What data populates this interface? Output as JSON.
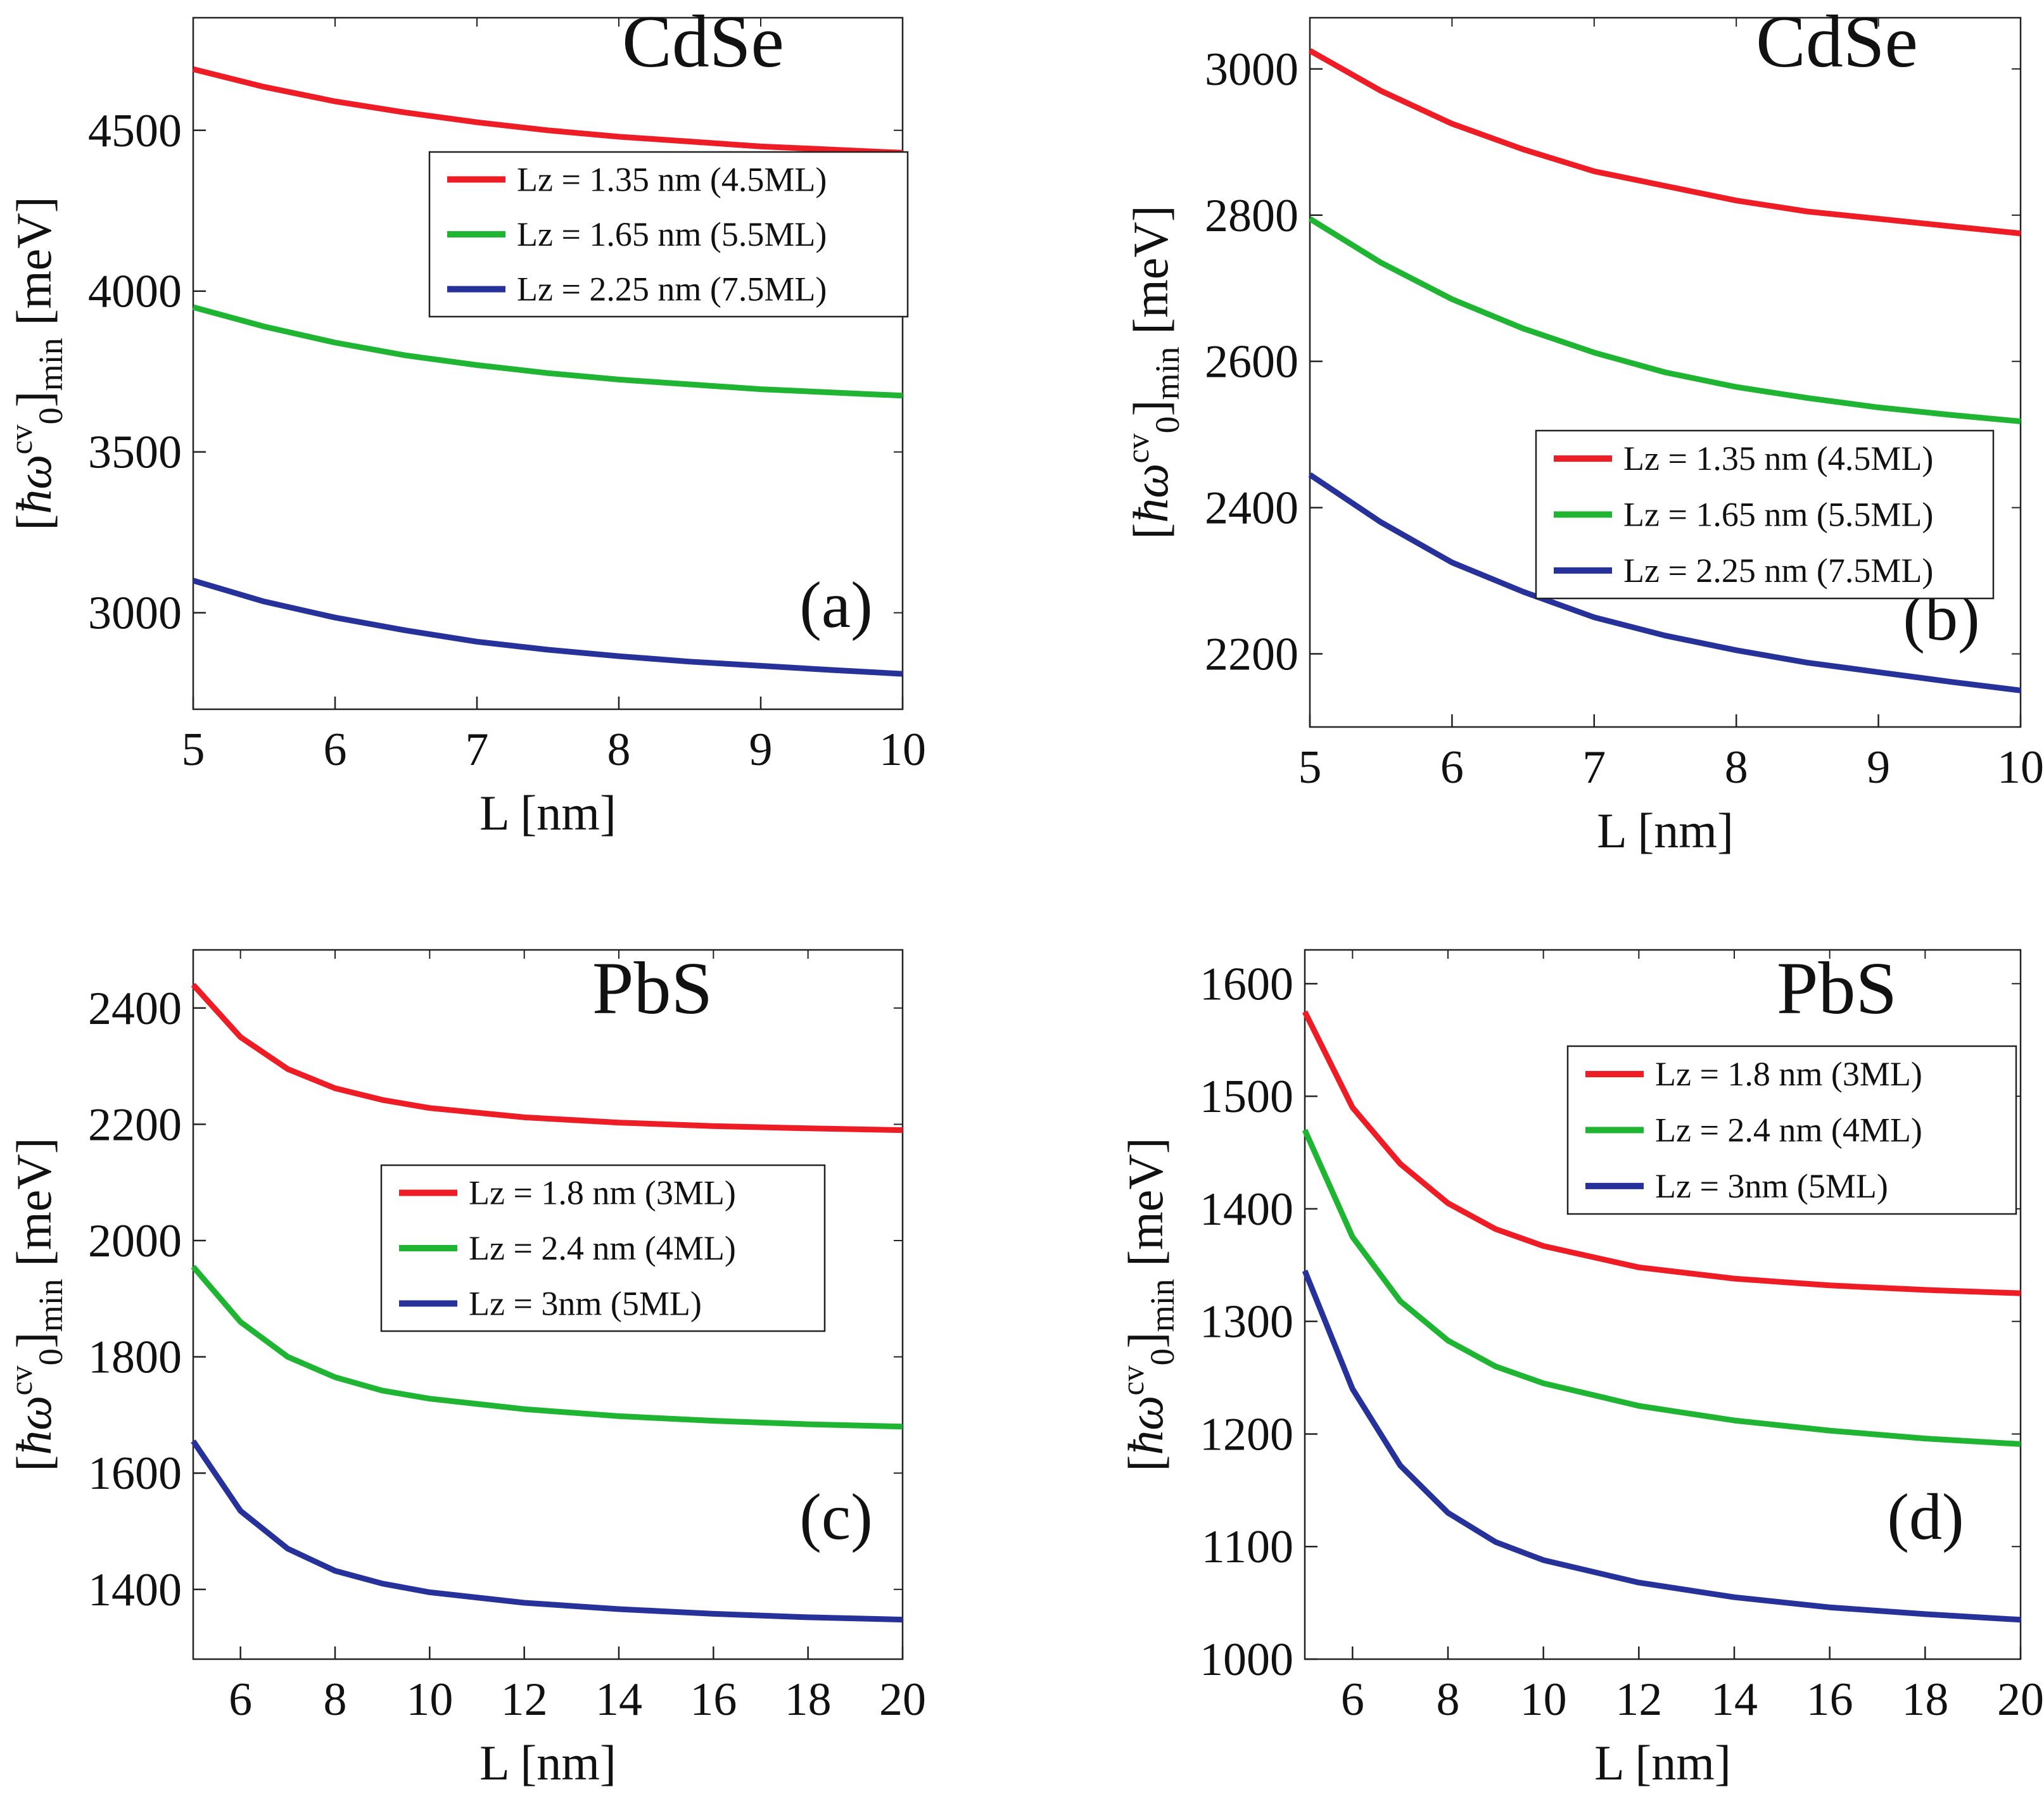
{
  "colors": {
    "red": "#ee1c25",
    "green": "#1fb533",
    "blue": "#26329a"
  },
  "chart_data": [
    {
      "type": "line",
      "panel": "(a)",
      "title": "CdSe",
      "xlabel": "L [nm]",
      "ylabel": {
        "prefix": "[",
        "symbol": "ħω",
        "sup": "cv",
        "sub0": "0",
        "suffix": "]",
        "sub": "min",
        "unit": " [meV]"
      },
      "xlim": [
        5,
        10
      ],
      "ylim": [
        2700,
        4850
      ],
      "xticks": [
        5,
        6,
        7,
        8,
        9,
        10
      ],
      "yticks": [
        3000,
        3500,
        4000,
        4500
      ],
      "legend_position": "top-right",
      "series": [
        {
          "name": "Lz = 1.35 nm (4.5ML)",
          "color": "red",
          "x": [
            5,
            5.5,
            6,
            6.5,
            7,
            7.5,
            8,
            8.5,
            9,
            9.5,
            10
          ],
          "y": [
            4690,
            4635,
            4590,
            4555,
            4525,
            4500,
            4480,
            4465,
            4450,
            4440,
            4430
          ]
        },
        {
          "name": "Lz = 1.65 nm (5.5ML)",
          "color": "green",
          "x": [
            5,
            5.5,
            6,
            6.5,
            7,
            7.5,
            8,
            8.5,
            9,
            9.5,
            10
          ],
          "y": [
            3950,
            3890,
            3840,
            3800,
            3770,
            3745,
            3725,
            3710,
            3695,
            3685,
            3675
          ]
        },
        {
          "name": "Lz = 2.25 nm (7.5ML)",
          "color": "blue",
          "x": [
            5,
            5.5,
            6,
            6.5,
            7,
            7.5,
            8,
            8.5,
            9,
            9.5,
            10
          ],
          "y": [
            3100,
            3035,
            2985,
            2945,
            2910,
            2885,
            2865,
            2848,
            2835,
            2822,
            2810
          ]
        }
      ]
    },
    {
      "type": "line",
      "panel": "(b)",
      "title": "CdSe",
      "xlabel": "L [nm]",
      "ylabel": {
        "prefix": "[",
        "symbol": "ħω",
        "sup": "cv",
        "sub0": "0",
        "suffix": "]",
        "sub": "min",
        "unit": " [meV]"
      },
      "xlim": [
        5,
        10
      ],
      "ylim": [
        2100,
        3070
      ],
      "xticks": [
        5,
        6,
        7,
        8,
        9,
        10
      ],
      "yticks": [
        2200,
        2400,
        2600,
        2800,
        3000
      ],
      "legend_position": "center-right",
      "series": [
        {
          "name": "Lz = 1.35 nm (4.5ML)",
          "color": "red",
          "x": [
            5,
            5.5,
            6,
            6.5,
            7,
            7.5,
            8,
            8.5,
            9,
            9.5,
            10
          ],
          "y": [
            3025,
            2970,
            2925,
            2890,
            2860,
            2840,
            2820,
            2805,
            2795,
            2785,
            2775
          ]
        },
        {
          "name": "Lz = 1.65 nm (5.5ML)",
          "color": "green",
          "x": [
            5,
            5.5,
            6,
            6.5,
            7,
            7.5,
            8,
            8.5,
            9,
            9.5,
            10
          ],
          "y": [
            2795,
            2735,
            2685,
            2645,
            2612,
            2585,
            2565,
            2550,
            2537,
            2527,
            2518
          ]
        },
        {
          "name": "Lz = 2.25 nm (7.5ML)",
          "color": "blue",
          "x": [
            5,
            5.5,
            6,
            6.5,
            7,
            7.5,
            8,
            8.5,
            9,
            9.5,
            10
          ],
          "y": [
            2445,
            2380,
            2325,
            2285,
            2250,
            2225,
            2205,
            2188,
            2175,
            2162,
            2150
          ]
        }
      ]
    },
    {
      "type": "line",
      "panel": "(c)",
      "title": "PbS",
      "xlabel": "L [nm]",
      "ylabel": {
        "prefix": "[",
        "symbol": "ħω",
        "sup": "cv",
        "sub0": "0",
        "suffix": "]",
        "sub": "min",
        "unit": " [meV]"
      },
      "xlim": [
        5,
        20
      ],
      "ylim": [
        1280,
        2500
      ],
      "xticks": [
        6,
        8,
        10,
        12,
        14,
        16,
        18,
        20
      ],
      "yticks": [
        1400,
        1600,
        1800,
        2000,
        2200,
        2400
      ],
      "legend_position": "center-right",
      "series": [
        {
          "name": "Lz = 1.8 nm (3ML)",
          "color": "red",
          "x": [
            5,
            6,
            7,
            8,
            9,
            10,
            12,
            14,
            16,
            18,
            20
          ],
          "y": [
            2440,
            2350,
            2295,
            2262,
            2242,
            2228,
            2212,
            2203,
            2197,
            2193,
            2190
          ]
        },
        {
          "name": "Lz = 2.4 nm (4ML)",
          "color": "green",
          "x": [
            5,
            6,
            7,
            8,
            9,
            10,
            12,
            14,
            16,
            18,
            20
          ],
          "y": [
            1955,
            1860,
            1800,
            1765,
            1742,
            1728,
            1710,
            1698,
            1690,
            1684,
            1680
          ]
        },
        {
          "name": "Lz = 3nm (5ML)",
          "color": "blue",
          "x": [
            5,
            6,
            7,
            8,
            9,
            10,
            12,
            14,
            16,
            18,
            20
          ],
          "y": [
            1655,
            1535,
            1470,
            1432,
            1410,
            1395,
            1377,
            1366,
            1358,
            1352,
            1348
          ]
        }
      ]
    },
    {
      "type": "line",
      "panel": "(d)",
      "title": "PbS",
      "xlabel": "L [nm]",
      "ylabel": {
        "prefix": "[",
        "symbol": "ħω",
        "sup": "cv",
        "sub0": "0",
        "suffix": "]",
        "sub": "min",
        "unit": " [meV]"
      },
      "xlim": [
        5,
        20
      ],
      "ylim": [
        1000,
        1630
      ],
      "xticks": [
        6,
        8,
        10,
        12,
        14,
        16,
        18,
        20
      ],
      "yticks": [
        1000,
        1100,
        1200,
        1300,
        1400,
        1500,
        1600
      ],
      "legend_position": "top-right",
      "series": [
        {
          "name": "Lz = 1.8 nm (3ML)",
          "color": "red",
          "x": [
            5,
            6,
            7,
            8,
            9,
            10,
            12,
            14,
            16,
            18,
            20
          ],
          "y": [
            1575,
            1490,
            1440,
            1405,
            1382,
            1367,
            1348,
            1338,
            1332,
            1328,
            1325
          ]
        },
        {
          "name": "Lz = 2.4 nm (4ML)",
          "color": "green",
          "x": [
            5,
            6,
            7,
            8,
            9,
            10,
            12,
            14,
            16,
            18,
            20
          ],
          "y": [
            1470,
            1375,
            1318,
            1283,
            1260,
            1245,
            1225,
            1212,
            1203,
            1196,
            1191
          ]
        },
        {
          "name": "Lz = 3nm (5ML)",
          "color": "blue",
          "x": [
            5,
            6,
            7,
            8,
            9,
            10,
            12,
            14,
            16,
            18,
            20
          ],
          "y": [
            1345,
            1240,
            1172,
            1130,
            1104,
            1088,
            1068,
            1055,
            1046,
            1040,
            1035
          ]
        }
      ]
    }
  ]
}
